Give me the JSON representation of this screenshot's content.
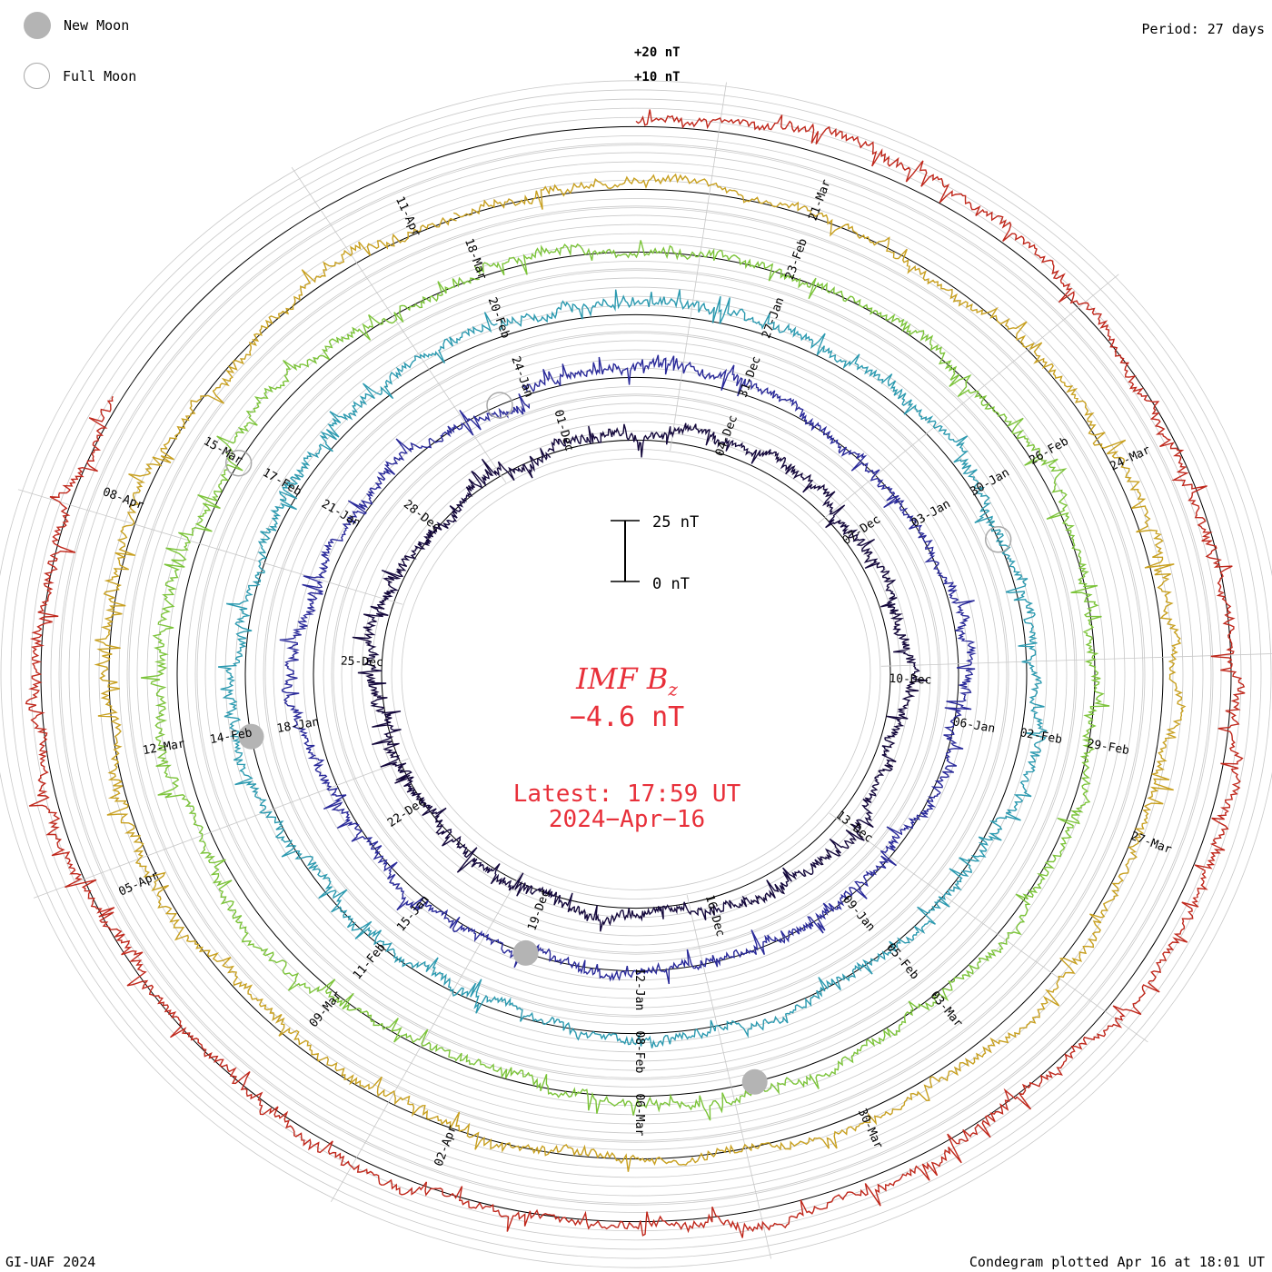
{
  "legend": {
    "new_moon_label": "New Moon",
    "full_moon_label": "Full Moon",
    "new_moon_color": "#b4b4b4",
    "full_moon_color": "#a8a8a8"
  },
  "header": {
    "period": "Period: 27 days"
  },
  "footer": {
    "credit": "GI-UAF 2024",
    "plotted": "Condegram plotted Apr 16 at 18:01 UT"
  },
  "center": {
    "title": "IMF B",
    "subscript": "z",
    "value": "−4.6 nT",
    "latest": "Latest: 17:59 UT",
    "date": "2024−Apr−16",
    "color": "#e8303a"
  },
  "chart_data": {
    "type": "line",
    "variant": "condegram spiral",
    "period_days": 27,
    "scale_bar": {
      "top_label": "25 nT",
      "bottom_label": "0 nT",
      "top_value": 25,
      "bottom_value": 0
    },
    "outer_ring_labels": [
      "+20 nT",
      "+10 nT"
    ],
    "rings": [
      {
        "color": "#14083c",
        "dates": [
          "04-Dec",
          "07-Dec",
          "10-Dec",
          "13-Dec",
          "16-Dec",
          "19-Dec",
          "22-Dec",
          "25-Dec",
          "28-Dec",
          "01-Dec"
        ]
      },
      {
        "color": "#2a2a9a",
        "dates": [
          "31-Dec",
          "03-Jan",
          "06-Jan",
          "09-Jan",
          "12-Jan",
          "15-Jan",
          "18-Jan",
          "21-Jan",
          "24-Jan"
        ]
      },
      {
        "color": "#2c9ab0",
        "dates": [
          "27-Jan",
          "30-Jan",
          "02-Feb",
          "05-Feb",
          "08-Feb",
          "11-Feb",
          "14-Feb",
          "17-Feb",
          "20-Feb"
        ]
      },
      {
        "color": "#7cc43a",
        "dates": [
          "23-Feb",
          "26-Feb",
          "29-Feb",
          "03-Mar",
          "06-Mar",
          "09-Mar",
          "12-Mar",
          "15-Mar",
          "18-Mar"
        ]
      },
      {
        "color": "#c8a020",
        "dates": [
          "21-Mar",
          "24-Mar",
          "27-Mar",
          "30-Mar",
          "02-Apr",
          "05-Apr",
          "08-Apr",
          "11-Apr"
        ]
      },
      {
        "color": "#c0281c",
        "dates": []
      }
    ],
    "full_moon_positions_deg": [
      335,
      68,
      300
    ],
    "new_moon_positions_deg": [
      200,
      260,
      165
    ]
  }
}
